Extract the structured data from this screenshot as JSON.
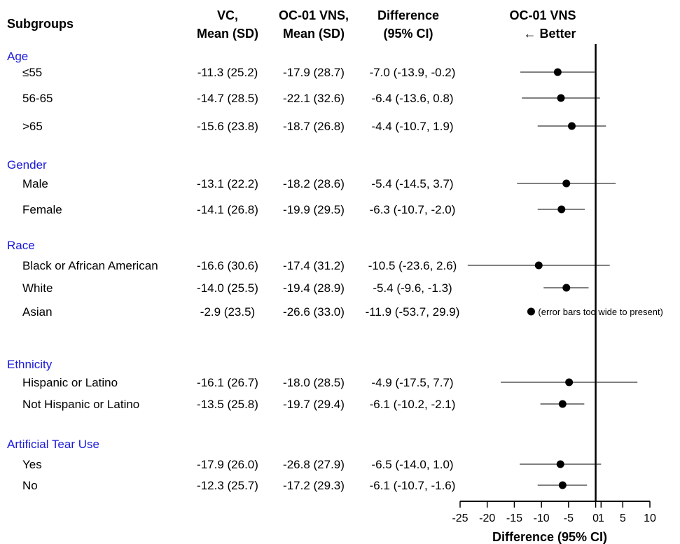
{
  "headers": {
    "subgroups": "Subgroups",
    "vc_line1": "VC,",
    "vc_line2": "Mean (SD)",
    "oc_line1": "OC-01 VNS,",
    "oc_line2": "Mean (SD)",
    "diff_line1": "Difference",
    "diff_line2": "(95% CI)",
    "favor_line1": "OC-01 VNS",
    "favor_line2": "← Better"
  },
  "colors": {
    "group": "#1a1adc",
    "ink": "#000000"
  },
  "note": "(error bars too wide to present)",
  "chart_data": {
    "type": "scatter",
    "subtype": "forest-plot",
    "xlabel": "Difference (95% CI)",
    "xlim": [
      -25,
      10
    ],
    "xticks": [
      -25,
      -20,
      -15,
      -10,
      -5,
      0,
      1,
      5,
      10
    ],
    "xtick_labels": [
      "-25",
      "-20",
      "-15",
      "-10",
      "-5",
      "0",
      "1",
      "5",
      "10"
    ],
    "reference_line": 0,
    "groups": [
      {
        "name": "Age",
        "rows": [
          {
            "label": "≤55",
            "vc": "-11.3 (25.2)",
            "oc": "-17.9 (28.7)",
            "diff": "-7.0 (-13.9, -0.2)",
            "est": -7.0,
            "lo": -13.9,
            "hi": -0.2
          },
          {
            "label": "56-65",
            "vc": "-14.7 (28.5)",
            "oc": "-22.1 (32.6)",
            "diff": "-6.4 (-13.6, 0.8)",
            "est": -6.4,
            "lo": -13.6,
            "hi": 0.8
          },
          {
            "label": ">65",
            "vc": "-15.6 (23.8)",
            "oc": "-18.7 (26.8)",
            "diff": "-4.4 (-10.7, 1.9)",
            "est": -4.4,
            "lo": -10.7,
            "hi": 1.9
          }
        ]
      },
      {
        "name": "Gender",
        "rows": [
          {
            "label": "Male",
            "vc": "-13.1 (22.2)",
            "oc": "-18.2 (28.6)",
            "diff": "-5.4 (-14.5, 3.7)",
            "est": -5.4,
            "lo": -14.5,
            "hi": 3.7
          },
          {
            "label": "Female",
            "vc": "-14.1 (26.8)",
            "oc": "-19.9 (29.5)",
            "diff": "-6.3 (-10.7, -2.0)",
            "est": -6.3,
            "lo": -10.7,
            "hi": -2.0
          }
        ]
      },
      {
        "name": "Race",
        "rows": [
          {
            "label": "Black or African American",
            "vc": "-16.6 (30.6)",
            "oc": "-17.4 (31.2)",
            "diff": "-10.5 (-23.6, 2.6)",
            "est": -10.5,
            "lo": -23.6,
            "hi": 2.6
          },
          {
            "label": "White",
            "vc": "-14.0 (25.5)",
            "oc": "-19.4 (28.9)",
            "diff": "-5.4 (-9.6, -1.3)",
            "est": -5.4,
            "lo": -9.6,
            "hi": -1.3
          },
          {
            "label": "Asian",
            "vc": "-2.9 (23.5)",
            "oc": "-26.6 (33.0)",
            "diff": "-11.9 (-53.7, 29.9)",
            "est": -11.9,
            "lo": null,
            "hi": null,
            "note": true
          }
        ]
      },
      {
        "name": "Ethnicity",
        "rows": [
          {
            "label": "Hispanic or Latino",
            "vc": "-16.1 (26.7)",
            "oc": "-18.0 (28.5)",
            "diff": "-4.9 (-17.5, 7.7)",
            "est": -4.9,
            "lo": -17.5,
            "hi": 7.7
          },
          {
            "label": "Not Hispanic or Latino",
            "vc": "-13.5 (25.8)",
            "oc": "-19.7 (29.4)",
            "diff": "-6.1 (-10.2, -2.1)",
            "est": -6.1,
            "lo": -10.2,
            "hi": -2.1
          }
        ]
      },
      {
        "name": "Artificial Tear Use",
        "rows": [
          {
            "label": "Yes",
            "vc": "-17.9 (26.0)",
            "oc": "-26.8 (27.9)",
            "diff": "-6.5 (-14.0, 1.0)",
            "est": -6.5,
            "lo": -14.0,
            "hi": 1.0
          },
          {
            "label": "No",
            "vc": "-12.3 (25.7)",
            "oc": "-17.2 (29.3)",
            "diff": "-6.1 (-10.7, -1.6)",
            "est": -6.1,
            "lo": -10.7,
            "hi": -1.6
          }
        ]
      }
    ]
  }
}
